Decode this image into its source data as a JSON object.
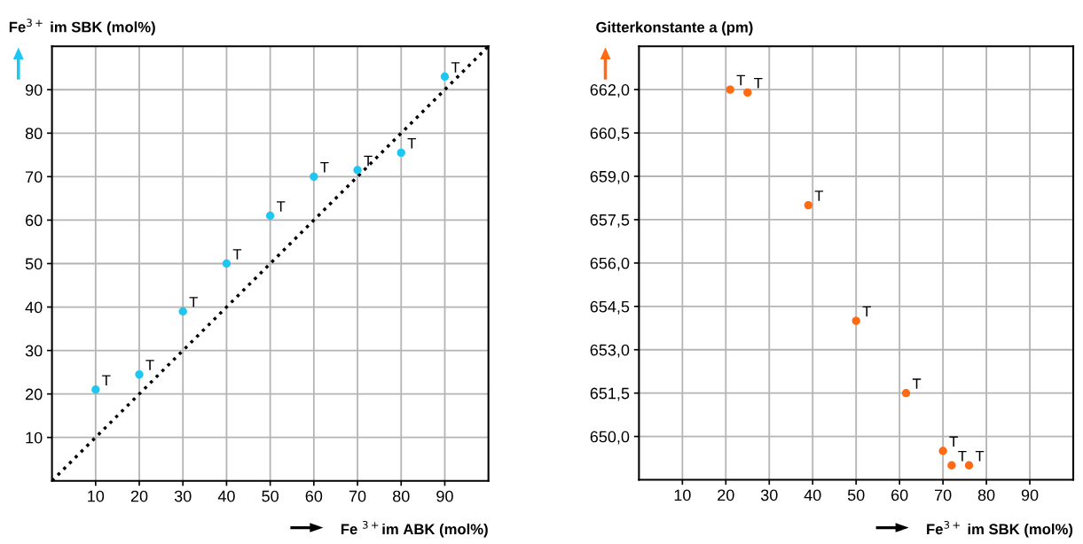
{
  "chart_data": [
    {
      "type": "scatter",
      "ylabel": "Fe$^{3+}$ im SBK (mol%)",
      "xlabel": "Fe $^{3+}$im ABK (mol%)",
      "xlim": [
        0,
        100
      ],
      "ylim": [
        0,
        100
      ],
      "xticks": [
        10,
        20,
        30,
        40,
        50,
        60,
        70,
        80,
        90
      ],
      "yticks": [
        10,
        20,
        30,
        40,
        50,
        60,
        70,
        80,
        90
      ],
      "grid": true,
      "marker": "circle",
      "series": [
        {
          "color": "#1ec6f2",
          "x": [
            10,
            20,
            30,
            40,
            50,
            60,
            70,
            80,
            90
          ],
          "values": [
            21,
            24.5,
            39,
            50,
            61,
            70,
            71.5,
            75.5,
            93
          ]
        },
        {
          "type": "line",
          "color": "#000000",
          "line_style": "dotted",
          "marker": "none",
          "x": [
            0,
            100
          ],
          "values": [
            0,
            100
          ]
        }
      ],
      "annotations": [
        {
          "text": "T",
          "x": 10,
          "y": 21
        },
        {
          "text": "T",
          "x": 20,
          "y": 24.5
        },
        {
          "text": "T",
          "x": 30,
          "y": 39
        },
        {
          "text": "T",
          "x": 40,
          "y": 50
        },
        {
          "text": "T",
          "x": 50,
          "y": 61
        },
        {
          "text": "T",
          "x": 60,
          "y": 70
        },
        {
          "text": "T",
          "x": 70,
          "y": 71.5
        },
        {
          "text": "T",
          "x": 80,
          "y": 75.5
        },
        {
          "text": "T",
          "x": 90,
          "y": 93
        }
      ]
    },
    {
      "type": "scatter",
      "ylabel": "Gitterkonstante a (pm)",
      "xlabel": "Fe$^{3+}$ im SBK (mol%)",
      "xlim": [
        0,
        100
      ],
      "ylim": [
        648.5,
        663.5
      ],
      "xticks": [
        10,
        20,
        30,
        40,
        50,
        60,
        70,
        80,
        90
      ],
      "yticks": [
        {
          "value": 650.0,
          "label": "650,0"
        },
        {
          "value": 651.5,
          "label": "651,5"
        },
        {
          "value": 653.0,
          "label": "653,0"
        },
        {
          "value": 654.5,
          "label": "654,5"
        },
        {
          "value": 656.0,
          "label": "656,0"
        },
        {
          "value": 657.5,
          "label": "657,5"
        },
        {
          "value": 659.0,
          "label": "659,0"
        },
        {
          "value": 660.5,
          "label": "660,5"
        },
        {
          "value": 662.0,
          "label": "662,0"
        }
      ],
      "grid": true,
      "marker": "circle",
      "series": [
        {
          "color": "#ff6a13",
          "x": [
            21,
            25,
            39,
            50,
            61.5,
            70,
            72,
            76
          ],
          "values": [
            662.0,
            661.9,
            658.0,
            654.0,
            651.5,
            649.5,
            649.0,
            649.0
          ]
        }
      ],
      "annotations": [
        {
          "text": "T",
          "x": 21,
          "y": 662.0
        },
        {
          "text": "T",
          "x": 25,
          "y": 661.9
        },
        {
          "text": "T",
          "x": 39,
          "y": 658.0
        },
        {
          "text": "T",
          "x": 50,
          "y": 654.0
        },
        {
          "text": "T",
          "x": 61.5,
          "y": 651.5
        },
        {
          "text": "T",
          "x": 70,
          "y": 649.5
        },
        {
          "text": "T",
          "x": 72,
          "y": 649.0
        },
        {
          "text": "T",
          "x": 76,
          "y": 649.0
        }
      ]
    }
  ]
}
